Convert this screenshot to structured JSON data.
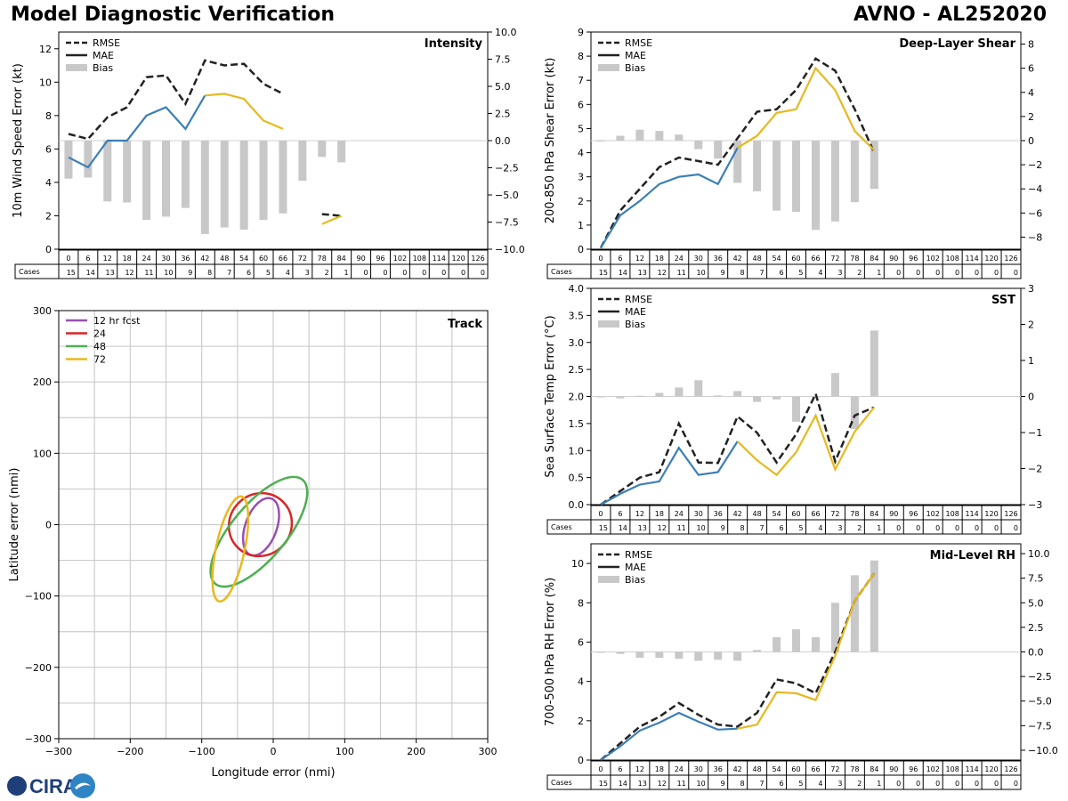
{
  "header": {
    "title": "Model Diagnostic Verification",
    "storm": "AVNO - AL252020"
  },
  "logo": {
    "text": "CIRA"
  },
  "colors": {
    "rmse": "#222222",
    "mae_ok": "#3a7fb8",
    "mae_low": "#e8b820",
    "bias": "#c8c8c8",
    "fc12": "#9a4fb0",
    "fc24": "#d62728",
    "fc48": "#4caf50",
    "fc72": "#e8b820",
    "grid": "#cccccc"
  },
  "table": {
    "hours": [
      "0",
      "6",
      "12",
      "18",
      "24",
      "30",
      "36",
      "42",
      "48",
      "54",
      "60",
      "66",
      "72",
      "78",
      "84",
      "90",
      "96",
      "102",
      "108",
      "114",
      "120",
      "126"
    ],
    "cases": [
      "15",
      "14",
      "13",
      "12",
      "11",
      "10",
      "9",
      "8",
      "7",
      "6",
      "5",
      "4",
      "3",
      "2",
      "1",
      "0",
      "0",
      "0",
      "0",
      "0",
      "0",
      "0"
    ],
    "cases_label": "Cases"
  },
  "chart_data": [
    {
      "type": "line",
      "title": "Intensity",
      "ylabel": "10m Wind Speed Error (kt)",
      "ylim": [
        0,
        13
      ],
      "y2lim": [
        -10,
        10
      ],
      "yticks": [
        "0",
        "2",
        "4",
        "6",
        "8",
        "10",
        "12"
      ],
      "y2ticks": [
        "−10.0",
        "−7.5",
        "−5.0",
        "−2.5",
        "0.0",
        "2.5",
        "5.0",
        "7.5",
        "10.0"
      ],
      "legend": [
        "RMSE",
        "MAE",
        "Bias"
      ],
      "x": [
        0,
        6,
        12,
        18,
        24,
        30,
        36,
        42,
        48,
        54,
        60,
        66,
        72,
        78,
        84
      ],
      "rmse": [
        6.9,
        6.6,
        7.9,
        8.5,
        10.3,
        10.4,
        8.7,
        11.3,
        11.0,
        11.1,
        9.9,
        9.3,
        null,
        2.1,
        2.0
      ],
      "mae": [
        5.5,
        4.9,
        6.5,
        6.5,
        8.0,
        8.5,
        7.2,
        9.2,
        9.3,
        9.0,
        7.7,
        7.2,
        null,
        1.5,
        2.0
      ],
      "bias": [
        -3.5,
        -3.4,
        -5.6,
        -5.7,
        -7.3,
        -7.0,
        -6.2,
        -8.6,
        -8.0,
        -8.2,
        -7.3,
        -6.7,
        -3.7,
        -1.5,
        -2.0
      ],
      "mae_low_from": 7
    },
    {
      "type": "line",
      "title": "Deep-Layer Shear",
      "ylabel": "200-850 hPa Shear Error (kt)",
      "ylim": [
        0,
        9
      ],
      "y2lim": [
        -9,
        9
      ],
      "yticks": [
        "0",
        "1",
        "2",
        "3",
        "4",
        "5",
        "6",
        "7",
        "8",
        "9"
      ],
      "y2ticks": [
        "−8",
        "−6",
        "−4",
        "−2",
        "0",
        "2",
        "4",
        "6",
        "8"
      ],
      "legend": [
        "RMSE",
        "MAE",
        "Bias"
      ],
      "x": [
        0,
        6,
        12,
        18,
        24,
        30,
        36,
        42,
        48,
        54,
        60,
        66,
        72,
        78,
        84
      ],
      "rmse": [
        0.05,
        1.6,
        2.5,
        3.4,
        3.8,
        3.65,
        3.5,
        4.6,
        5.7,
        5.8,
        6.6,
        7.9,
        7.4,
        5.8,
        4.0
      ],
      "mae": [
        0.05,
        1.4,
        2.0,
        2.7,
        3.0,
        3.1,
        2.7,
        4.2,
        4.7,
        5.65,
        5.8,
        7.5,
        6.6,
        4.9,
        4.1
      ],
      "bias": [
        0.0,
        0.4,
        0.9,
        0.8,
        0.5,
        -0.7,
        -1.5,
        -3.5,
        -4.2,
        -5.8,
        -5.9,
        -7.4,
        -6.7,
        -5.1,
        -4.0
      ],
      "mae_low_from": 7
    },
    {
      "type": "line",
      "title": "SST",
      "ylabel": "Sea Surface Temp Error (°C)",
      "ylim": [
        0,
        4
      ],
      "y2lim": [
        -3,
        3
      ],
      "yticks": [
        "0.0",
        "0.5",
        "1.0",
        "1.5",
        "2.0",
        "2.5",
        "3.0",
        "3.5",
        "4.0"
      ],
      "y2ticks": [
        "−3",
        "−2",
        "−1",
        "0",
        "1",
        "2",
        "3"
      ],
      "legend": [
        "RMSE",
        "MAE",
        "Bias"
      ],
      "x": [
        0,
        6,
        12,
        18,
        24,
        30,
        36,
        42,
        48,
        54,
        60,
        66,
        72,
        78,
        84
      ],
      "rmse": [
        0.0,
        0.25,
        0.5,
        0.6,
        1.5,
        0.78,
        0.77,
        1.63,
        1.33,
        0.78,
        1.3,
        2.05,
        0.8,
        1.65,
        1.8
      ],
      "mae": [
        0.0,
        0.2,
        0.37,
        0.43,
        1.05,
        0.55,
        0.6,
        1.17,
        0.82,
        0.55,
        0.97,
        1.65,
        0.65,
        1.35,
        1.8
      ],
      "bias": [
        0.0,
        -0.05,
        0.02,
        0.1,
        0.25,
        0.45,
        0.03,
        0.15,
        -0.15,
        -0.08,
        -0.7,
        0.0,
        0.65,
        -0.9,
        1.83
      ],
      "mae_low_from": 7
    },
    {
      "type": "line",
      "title": "Mid-Level RH",
      "ylabel": "700-500 hPa RH Error (%)",
      "ylim": [
        0,
        11
      ],
      "y2lim": [
        -11,
        11
      ],
      "yticks": [
        "0",
        "2",
        "4",
        "6",
        "8",
        "10"
      ],
      "y2ticks": [
        "−10.0",
        "−7.5",
        "−5.0",
        "−2.5",
        "0.0",
        "2.5",
        "5.0",
        "7.5",
        "10.0"
      ],
      "legend": [
        "RMSE",
        "MAE",
        "Bias"
      ],
      "x": [
        0,
        6,
        12,
        18,
        24,
        30,
        36,
        42,
        48,
        54,
        60,
        66,
        72,
        78,
        84
      ],
      "rmse": [
        0.0,
        0.85,
        1.7,
        2.2,
        2.9,
        2.3,
        1.8,
        1.7,
        2.4,
        4.1,
        3.9,
        3.4,
        5.5,
        8.1,
        9.5
      ],
      "mae": [
        0.0,
        0.7,
        1.5,
        1.9,
        2.4,
        1.95,
        1.55,
        1.6,
        1.8,
        3.45,
        3.4,
        3.05,
        5.3,
        8.1,
        9.5
      ],
      "bias": [
        0.0,
        -0.2,
        -0.6,
        -0.6,
        -0.7,
        -0.9,
        -0.8,
        -0.9,
        0.2,
        1.5,
        2.3,
        1.5,
        5.0,
        7.8,
        9.3
      ],
      "mae_low_from": 7
    },
    {
      "type": "scatter",
      "title": "Track",
      "xlabel": "Longitude error (nmi)",
      "ylabel": "Latitude error (nmi)",
      "xlim": [
        -300,
        300
      ],
      "ylim": [
        -300,
        300
      ],
      "xticks": [
        "−300",
        "−200",
        "−100",
        "0",
        "100",
        "200",
        "300"
      ],
      "yticks": [
        "−300",
        "−200",
        "−100",
        "0",
        "100",
        "200",
        "300"
      ],
      "legend": [
        "12 hr fcst",
        "24",
        "48",
        "72"
      ],
      "ellipses": [
        {
          "cx": -17,
          "cy": -3,
          "a": 42,
          "b": 22,
          "angle": 70
        },
        {
          "cx": -18,
          "cy": 0,
          "a": 45,
          "b": 43,
          "angle": 45
        },
        {
          "cx": -20,
          "cy": -10,
          "a": 95,
          "b": 38,
          "angle": 50
        },
        {
          "cx": -60,
          "cy": -34,
          "a": 75,
          "b": 20,
          "angle": 78
        }
      ]
    }
  ]
}
